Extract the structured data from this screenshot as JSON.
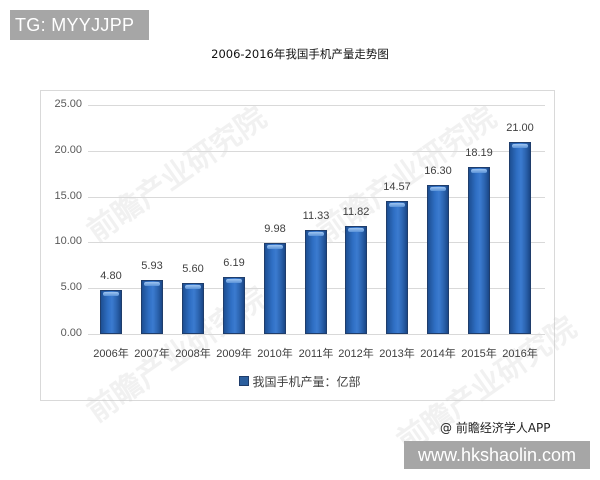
{
  "overlay": {
    "tg_badge": "TG: MYYJJPP",
    "source": "@ 前瞻经济学人APP",
    "url_badge": "www.hkshaolin.com"
  },
  "chart_data": {
    "type": "bar",
    "title": "2006-2016年我国手机产量走势图",
    "xlabel": "",
    "ylabel": "",
    "ylim": [
      0,
      25
    ],
    "yticks": [
      "0.00",
      "5.00",
      "10.00",
      "15.00",
      "20.00",
      "25.00"
    ],
    "grid": true,
    "legend_position": "bottom",
    "categories": [
      "2006年",
      "2007年",
      "2008年",
      "2009年",
      "2010年",
      "2011年",
      "2012年",
      "2013年",
      "2014年",
      "2015年",
      "2016年"
    ],
    "series": [
      {
        "name": "我国手机产量：亿部",
        "color": "#2c62ad",
        "values": [
          4.8,
          5.93,
          5.6,
          6.19,
          9.98,
          11.33,
          11.82,
          14.57,
          16.3,
          18.19,
          21.0
        ],
        "labels": [
          "4.80",
          "5.93",
          "5.60",
          "6.19",
          "9.98",
          "11.33",
          "11.82",
          "14.57",
          "16.30",
          "18.19",
          "21.00"
        ]
      }
    ]
  }
}
